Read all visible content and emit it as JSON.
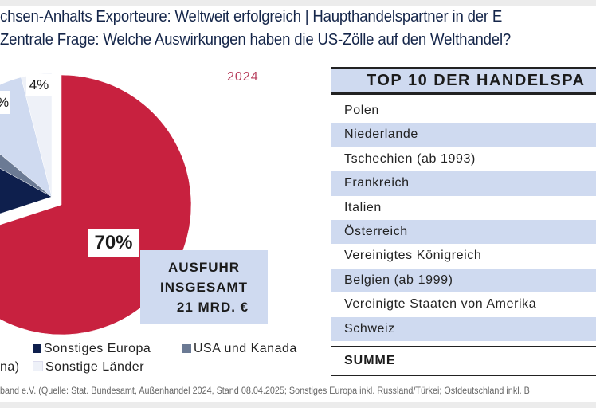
{
  "header": {
    "title_line1": "chsen-Anhalts Exporteure: Weltweit erfolgreich | Haupthandelspartner in der E",
    "title_line2": "Zentrale Frage: Welche Auswirkungen haben die US-Zölle auf den Welthandel?"
  },
  "chart_data": {
    "type": "pie",
    "year_label": "2024",
    "slices": [
      {
        "name": "",
        "value": 70,
        "label": "70%",
        "color": "#c8213f",
        "exploded": true
      },
      {
        "name": "Sonstiges Europa",
        "value": 13,
        "label": "",
        "color": "#0e1f4d"
      },
      {
        "name": "USA und Kanada",
        "value": 3,
        "label": "",
        "color": "#6b7a94"
      },
      {
        "name": "",
        "value": 10,
        "label": "%",
        "color": "#cfdaf0"
      },
      {
        "name": "Sonstige Länder",
        "value": 4,
        "label": "4%",
        "color": "#eef1f8"
      }
    ],
    "callout": [
      "AUSFUHR",
      "INSGESAMT",
      "21 MRD. €"
    ],
    "legend": {
      "cut_label": "na)",
      "items": [
        "Sonstiges Europa",
        "USA und Kanada",
        "Sonstige Länder"
      ]
    }
  },
  "table": {
    "title": "TOP 10 DER HANDELSPA",
    "rows": [
      "Polen",
      "Niederlande",
      "Tschechien (ab 1993)",
      "Frankreich",
      "Italien",
      "Österreich",
      "Vereinigtes Königreich",
      "Belgien (ab 1999)",
      "Vereinigte Staaten von Amerika",
      "Schweiz"
    ],
    "sum_label": "SUMME"
  },
  "footer": "band e.V. (Quelle: Stat. Bundesamt, Außenhandel 2024, Stand 08.04.2025; Sonstiges Europa inkl. Russland/Türkei; Ostdeutschland inkl. B"
}
